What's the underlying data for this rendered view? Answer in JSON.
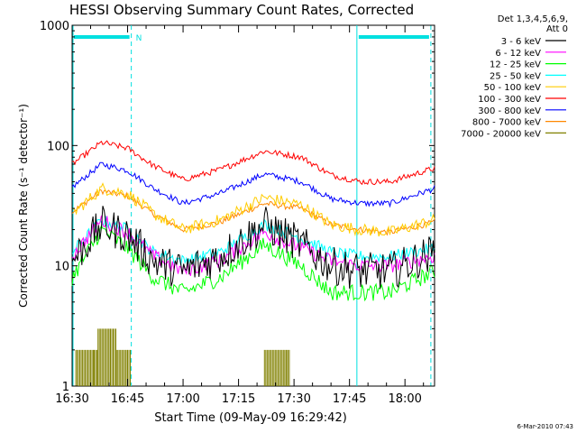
{
  "chart_data": {
    "type": "line",
    "title": "HESSI Observing Summary Count Rates, Corrected",
    "xlabel": "Start Time (09-May-09 16:29:42)",
    "ylabel": "Corrected Count Rate (s⁻¹ detector⁻¹)",
    "y_scale": "log",
    "ylim": [
      1,
      1000
    ],
    "xlim": [
      "16:30",
      "18:08"
    ],
    "x_ticks": [
      "16:30",
      "16:45",
      "17:00",
      "17:15",
      "17:30",
      "17:45",
      "18:00"
    ],
    "y_ticks": [
      "1",
      "10",
      "100",
      "1000"
    ],
    "grid": false,
    "legend_placement": "right",
    "legend_header": [
      "Det 1,3,4,5,6,9,",
      "Att 0"
    ],
    "footer_date": "6-Mar-2010 07:43",
    "flag_label": "N",
    "flag_color": "#00e0e0",
    "series": [
      {
        "name": "3 - 6 keV",
        "color": "#000000",
        "x": [
          "16:30",
          "16:38",
          "16:45",
          "16:52",
          "17:00",
          "17:10",
          "17:22",
          "17:32",
          "17:40",
          "17:48",
          "17:56",
          "18:08"
        ],
        "y": [
          11,
          22,
          18,
          11,
          9,
          12,
          22,
          15,
          10,
          9,
          9,
          13
        ]
      },
      {
        "name": "6 - 12 keV",
        "color": "#ff00ff",
        "x": [
          "16:30",
          "16:38",
          "16:45",
          "16:52",
          "17:00",
          "17:10",
          "17:22",
          "17:32",
          "17:40",
          "17:48",
          "17:56",
          "18:08"
        ],
        "y": [
          12,
          24,
          19,
          12,
          9,
          11,
          19,
          14,
          11,
          10,
          10,
          12
        ]
      },
      {
        "name": "12 - 25 keV",
        "color": "#00ff00",
        "x": [
          "16:30",
          "16:38",
          "16:45",
          "16:52",
          "17:00",
          "17:10",
          "17:22",
          "17:32",
          "17:40",
          "17:48",
          "17:56",
          "18:08"
        ],
        "y": [
          8,
          20,
          14,
          8,
          6,
          8,
          15,
          10,
          6,
          6,
          6,
          9
        ]
      },
      {
        "name": "25 - 50 keV",
        "color": "#00ffff",
        "x": [
          "16:30",
          "16:38",
          "16:45",
          "16:52",
          "17:00",
          "17:10",
          "17:22",
          "17:32",
          "17:40",
          "17:48",
          "17:56",
          "18:08"
        ],
        "y": [
          13,
          24,
          20,
          13,
          11,
          13,
          22,
          17,
          13,
          12,
          12,
          14
        ]
      },
      {
        "name": "50 - 100 keV",
        "color": "#ffcc00",
        "x": [
          "16:30",
          "16:38",
          "16:45",
          "16:52",
          "17:00",
          "17:10",
          "17:22",
          "17:32",
          "17:40",
          "17:48",
          "17:56",
          "18:08"
        ],
        "y": [
          27,
          44,
          40,
          27,
          20,
          24,
          37,
          32,
          22,
          20,
          19,
          24
        ]
      },
      {
        "name": "100 - 300 keV",
        "color": "#ff0000",
        "x": [
          "16:30",
          "16:38",
          "16:45",
          "16:52",
          "17:00",
          "17:10",
          "17:22",
          "17:32",
          "17:40",
          "17:48",
          "17:56",
          "18:08"
        ],
        "y": [
          70,
          106,
          95,
          68,
          52,
          63,
          90,
          80,
          57,
          50,
          50,
          65
        ]
      },
      {
        "name": "300 - 800 keV",
        "color": "#0000ff",
        "x": [
          "16:30",
          "16:38",
          "16:45",
          "16:52",
          "17:00",
          "17:10",
          "17:22",
          "17:32",
          "17:40",
          "17:48",
          "17:56",
          "18:08"
        ],
        "y": [
          45,
          70,
          62,
          44,
          33,
          40,
          58,
          50,
          36,
          33,
          33,
          44
        ]
      },
      {
        "name": "800 - 7000 keV",
        "color": "#ff8800",
        "x": [
          "16:30",
          "16:38",
          "16:45",
          "16:52",
          "17:00",
          "17:10",
          "17:22",
          "17:32",
          "17:40",
          "17:48",
          "17:56",
          "18:08"
        ],
        "y": [
          28,
          42,
          38,
          27,
          20,
          23,
          33,
          30,
          22,
          20,
          19,
          23
        ]
      },
      {
        "name": "7000 - 20000 keV",
        "color": "#808000",
        "x": [
          "16:31",
          "16:36",
          "16:37",
          "16:40",
          "16:42",
          "16:45",
          "16:46",
          "17:22",
          "17:28",
          "17:29"
        ],
        "y": [
          2,
          2,
          3,
          3,
          2,
          2,
          1,
          2,
          2,
          1
        ]
      }
    ]
  }
}
